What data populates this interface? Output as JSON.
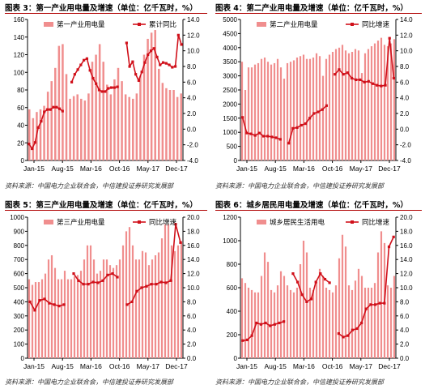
{
  "chart_data": [
    {
      "type": "bar+line",
      "title": "图表 3：第一产业用电量及增速（单位：亿千瓦时，%）",
      "source": "资料来源：中国电力企业联合会，中信建投证券研究发展部",
      "bar_color": "#f08e8e",
      "line_color": "#d0101a",
      "x_ticks": [
        "Jan-15",
        "Aug-15",
        "Mar-16",
        "Oct-16",
        "May-17",
        "Dec-17"
      ],
      "left_ticks": [
        "0",
        "20",
        "40",
        "60",
        "80",
        "100",
        "120",
        "140",
        "160"
      ],
      "right_ticks": [
        "-4.0",
        "-2.0",
        "0.0",
        "2.0",
        "4.0",
        "6.0",
        "8.0",
        "10.0",
        "12.0",
        "14.0"
      ],
      "ylim": [
        0,
        160
      ],
      "y2lim": [
        -4,
        14
      ],
      "legend": [
        "第一产业用电量",
        "累计同比"
      ],
      "bars": [
        58,
        48,
        55,
        58,
        62,
        78,
        90,
        105,
        130,
        132,
        98,
        70,
        73,
        75,
        70,
        68,
        76,
        112,
        120,
        132,
        112,
        86,
        75,
        92,
        105,
        90,
        75,
        72,
        70,
        76,
        96,
        120,
        138,
        145,
        148,
        104,
        88,
        82,
        80,
        80,
        72,
        76
      ],
      "line": [
        -1.9,
        -2.5,
        -1.7,
        0.2,
        1.0,
        2.2,
        2.5,
        2.5,
        2.8,
        2.8,
        2.6,
        2.3,
        null,
        null,
        6.0,
        7.0,
        7.6,
        8.2,
        8.8,
        9.0,
        7.5,
        6.5,
        5.8,
        5.0,
        4.8,
        4.8,
        5.2,
        5.3,
        5.3,
        5.4,
        null,
        null,
        11.0,
        8.0,
        8.6,
        7.0,
        6.2,
        7.3,
        8.5,
        9.5,
        10.0,
        10.3,
        9.2,
        8.2,
        8.5,
        8.4,
        8.2,
        7.9,
        8.0,
        12.0,
        10.8
      ]
    },
    {
      "type": "bar+line",
      "title": "图表 4：第二产业用电量及增速（单位：亿千瓦时，%）",
      "source": "资料来源：中国电力企业联合会，中信建投证券研究发展部",
      "bar_color": "#f08e8e",
      "line_color": "#d0101a",
      "x_ticks": [
        "Jan-15",
        "Aug-15",
        "Mar-16",
        "Oct-16",
        "May-17",
        "Dec-17"
      ],
      "left_ticks": [
        "0",
        "500",
        "1000",
        "1500",
        "2000",
        "2500",
        "3000",
        "3500",
        "4000",
        "4500",
        "5000"
      ],
      "right_ticks": [
        "-4.0",
        "-2.0",
        "0.0",
        "2.0",
        "4.0",
        "6.0",
        "8.0",
        "10.0",
        "12.0",
        "14.0"
      ],
      "ylim": [
        0,
        5000
      ],
      "y2lim": [
        -4,
        14
      ],
      "legend": [
        "第二产业用电量",
        "同比增速"
      ],
      "bars": [
        3500,
        2500,
        3300,
        3300,
        3400,
        3450,
        3600,
        3650,
        3500,
        3400,
        3450,
        3600,
        3300,
        2900,
        3450,
        3500,
        3550,
        3650,
        3700,
        3750,
        3600,
        3600,
        3650,
        3800,
        3700,
        3000,
        3600,
        3750,
        3850,
        3950,
        4000,
        4100,
        3900,
        3800,
        3850,
        3950,
        3900,
        3100,
        3800,
        3950,
        4050,
        4150,
        4250,
        4350,
        4100,
        4050,
        4150,
        4300
      ],
      "line": [
        1.5,
        -0.5,
        -0.6,
        -0.8,
        -0.5,
        -0.9,
        -0.9,
        -1.0,
        -1.1,
        -1.3,
        null,
        -1.8,
        0.1,
        0.2,
        0.5,
        0.7,
        1.4,
        2.0,
        2.2,
        2.5,
        3.0,
        null,
        7.0,
        7.6,
        7.0,
        7.2,
        6.5,
        6.3,
        6.3,
        6.0,
        6.1,
        5.8,
        5.6,
        5.5,
        5.6,
        11.6,
        6.5
      ]
    },
    {
      "type": "bar+line",
      "title": "图表 5：第三产业用电量及增速（单位：亿千瓦时，%）",
      "source": "资料来源：中国电力企业联合会，中信建投证券研究发展部",
      "bar_color": "#f08e8e",
      "line_color": "#d0101a",
      "x_ticks": [
        "Jan-15",
        "Aug-15",
        "Mar-16",
        "Oct-16",
        "May-17",
        "Dec-17"
      ],
      "left_ticks": [
        "0",
        "100",
        "200",
        "300",
        "400",
        "500",
        "600",
        "700",
        "800",
        "900",
        "1000"
      ],
      "right_ticks": [
        "0.0",
        "2.0",
        "4.0",
        "6.0",
        "8.0",
        "10.0",
        "12.0",
        "14.0",
        "16.0",
        "18.0",
        "20.0"
      ],
      "ylim": [
        0,
        1000
      ],
      "y2lim": [
        0,
        20
      ],
      "legend": [
        "第三产业用电量",
        "同比增速"
      ],
      "bars": [
        560,
        520,
        540,
        540,
        560,
        600,
        700,
        730,
        640,
        560,
        560,
        620,
        560,
        560,
        580,
        590,
        620,
        700,
        800,
        800,
        700,
        600,
        620,
        700,
        700,
        660,
        640,
        660,
        700,
        800,
        900,
        930,
        800,
        700,
        700,
        760,
        750,
        660,
        700,
        730,
        750,
        850,
        950,
        950,
        800,
        760,
        800,
        830
      ],
      "line": [
        8.0,
        6.8,
        8.2,
        8.4,
        7.8,
        7.6,
        7.4,
        7.6,
        null,
        12.0,
        11.0,
        10.5,
        10.5,
        10.8,
        10.7,
        11.0,
        11.8,
        12.0,
        11.5,
        null,
        7.6,
        8.0,
        9.5,
        10.0,
        10.2,
        10.5,
        10.5,
        10.8,
        10.7,
        11.0,
        19.0,
        16.4
      ]
    },
    {
      "type": "bar+line",
      "title": "图表 6：城乡居民用电量及增速（单位：亿千瓦时，%）",
      "source": "资料来源：中国电力企业联合会，中信建投证券研究发展部",
      "bar_color": "#f08e8e",
      "line_color": "#d0101a",
      "x_ticks": [
        "Jan-15",
        "Aug-15",
        "Mar-16",
        "Oct-16",
        "May-17",
        "Dec-17"
      ],
      "left_ticks": [
        "0",
        "200",
        "400",
        "600",
        "800",
        "1000",
        "1200"
      ],
      "right_ticks": [
        "0.0",
        "2.0",
        "4.0",
        "6.0",
        "8.0",
        "10.0",
        "12.0",
        "14.0",
        "16.0",
        "18.0",
        "20.0"
      ],
      "ylim": [
        0,
        1200
      ],
      "y2lim": [
        0,
        20
      ],
      "legend": [
        "城乡居民生活用电",
        "同比增速"
      ],
      "bars": [
        680,
        640,
        600,
        580,
        560,
        560,
        700,
        900,
        820,
        580,
        560,
        620,
        740,
        700,
        620,
        580,
        560,
        600,
        800,
        1000,
        900,
        600,
        580,
        650,
        760,
        700,
        600,
        580,
        560,
        620,
        850,
        1050,
        950,
        620,
        580,
        660,
        760,
        700,
        600,
        600,
        600,
        640,
        900,
        1080,
        980,
        620,
        600,
        700
      ],
      "line": [
        2.5,
        2.6,
        3.2,
        5.0,
        4.8,
        5.0,
        4.6,
        4.8,
        5.0,
        5.2,
        null,
        12.0,
        10.8,
        9.0,
        8.0,
        8.4,
        10.8,
        12.0,
        11.2,
        10.7,
        null,
        3.5,
        3.0,
        3.2,
        4.0,
        4.2,
        5.0,
        7.0,
        7.6,
        7.6,
        7.8,
        7.8,
        15.8,
        17.2
      ]
    }
  ]
}
